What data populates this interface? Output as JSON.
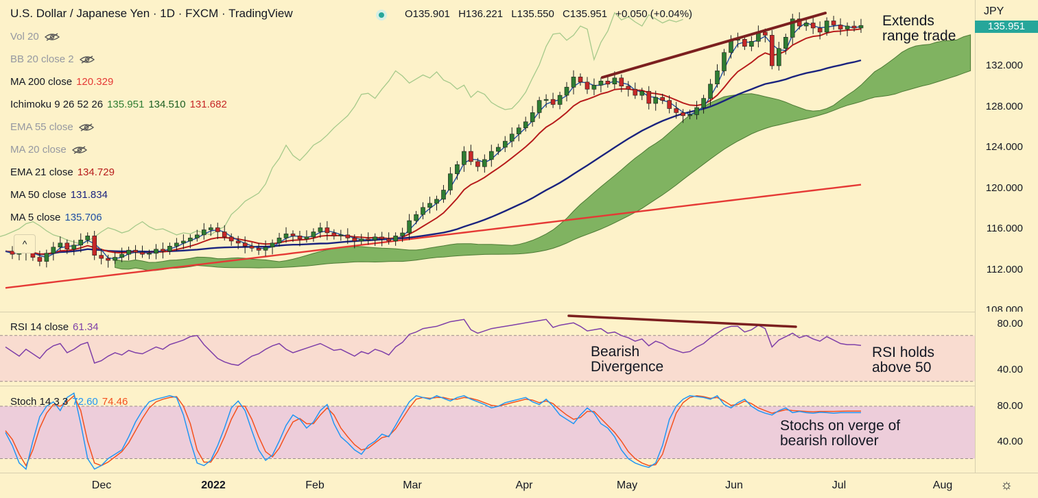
{
  "header": {
    "title": "U.S. Dollar / Japanese Yen · 1D · FXCM · TradingView",
    "open": "O135.901",
    "high": "H136.221",
    "low": "L135.550",
    "close": "C135.951",
    "change": "+0.050 (+0.04%)"
  },
  "legend": {
    "vol": "Vol 20",
    "bb": "BB 20 close 2",
    "ma200": {
      "label": "MA 200 close",
      "value": "120.329"
    },
    "ichimoku": {
      "label": "Ichimoku 9 26 52 26",
      "v1": "135.951",
      "v2": "134.510",
      "v3": "131.682"
    },
    "ema55": "EMA 55 close",
    "ma20": "MA 20 close",
    "ema21": {
      "label": "EMA 21 close",
      "value": "134.729"
    },
    "ma50": {
      "label": "MA 50 close",
      "value": "131.834"
    },
    "ma5": {
      "label": "MA 5 close",
      "value": "135.706"
    },
    "collapse": "^"
  },
  "rsi_legend": {
    "label": "RSI 14 close",
    "value": "61.34"
  },
  "stoch_legend": {
    "label": "Stoch 14 3 3",
    "k": "72.60",
    "d": "74.46"
  },
  "annotations": {
    "range_line1": "Extends",
    "range_line2": "range trade",
    "div_line1": "Bearish",
    "div_line2": "Divergence",
    "rsi_line1": "RSI holds",
    "rsi_line2": "above 50",
    "stoch_line1": "Stochs on verge of",
    "stoch_line2": "bearish rollover"
  },
  "axis": {
    "currency": "JPY",
    "last_price": "135.951",
    "price_ticks": [
      "132.000",
      "128.000",
      "124.000",
      "120.000",
      "116.000",
      "112.000",
      "108.000"
    ],
    "rsi_ticks": [
      "80.00",
      "40.00"
    ],
    "stoch_ticks": [
      "80.00",
      "40.00"
    ],
    "months": [
      "Dec",
      "2022",
      "Feb",
      "Mar",
      "Apr",
      "May",
      "Jun",
      "Jul",
      "Aug"
    ]
  },
  "colors": {
    "background": "#fdf2c9",
    "up": "#2e7d32",
    "down": "#c62828",
    "ma5": "#1e4fa3",
    "ema21": "#b71c1c",
    "ma50": "#1a237e",
    "ma200": "#e53935",
    "cloud": "#6aa84f",
    "lagging": "#a5c98a",
    "rsi": "#7e3fa8",
    "stoch_k": "#2196f3",
    "stoch_d": "#f4511e",
    "trendline": "#7b1f1f",
    "rsi_band": "#f8d9d0",
    "stoch_band": "#ebc9dc"
  },
  "chart_data": [
    {
      "type": "candlestick",
      "title": "U.S. Dollar / Japanese Yen · 1D · FXCM",
      "ylim": [
        108,
        138
      ],
      "x_months": [
        "Dec",
        "2022",
        "Feb",
        "Mar",
        "Apr",
        "May",
        "Jun",
        "Jul",
        "Aug"
      ],
      "close_series": [
        113.8,
        113.5,
        113.6,
        114.1,
        113.2,
        112.8,
        113.6,
        114.2,
        114.6,
        114.0,
        114.4,
        114.9,
        115.3,
        113.4,
        113.1,
        112.9,
        113.2,
        113.5,
        113.9,
        113.7,
        113.5,
        113.6,
        114.0,
        113.8,
        114.3,
        114.6,
        114.8,
        115.1,
        115.4,
        115.9,
        116.1,
        115.7,
        115.2,
        114.8,
        114.6,
        114.3,
        114.1,
        113.9,
        114.2,
        114.6,
        115.1,
        115.5,
        115.3,
        115.0,
        115.2,
        115.7,
        116.1,
        115.6,
        115.3,
        115.4,
        115.1,
        114.8,
        115.0,
        114.9,
        115.2,
        115.0,
        114.8,
        115.3,
        115.6,
        116.8,
        117.4,
        118.1,
        118.5,
        118.9,
        119.8,
        121.4,
        122.3,
        123.6,
        122.6,
        122.1,
        122.8,
        123.6,
        124.0,
        124.6,
        125.3,
        125.9,
        126.5,
        127.4,
        128.6,
        128.7,
        128.2,
        129.1,
        129.9,
        130.9,
        130.4,
        129.7,
        130.1,
        130.5,
        130.2,
        130.8,
        130.0,
        129.7,
        129.1,
        129.5,
        128.3,
        128.9,
        128.6,
        127.8,
        127.4,
        127.1,
        127.2,
        127.9,
        128.8,
        130.2,
        131.5,
        133.3,
        134.5,
        134.6,
        133.9,
        134.4,
        135.3,
        135.0,
        132.0,
        133.7,
        134.8,
        136.6,
        135.9,
        136.2,
        135.7,
        135.3,
        136.4,
        136.0,
        135.6,
        135.9,
        135.7,
        135.95
      ],
      "series": [
        {
          "name": "MA 200 close",
          "value": 120.329
        },
        {
          "name": "EMA 21 close",
          "value": 134.729
        },
        {
          "name": "MA 50 close",
          "value": 131.834
        },
        {
          "name": "MA 5 close",
          "value": 135.706
        },
        {
          "name": "Ichimoku 9 26 52 26",
          "values": [
            135.951,
            134.51,
            131.682
          ]
        }
      ],
      "annotations": [
        "Extends range trade"
      ]
    },
    {
      "type": "line",
      "title": "RSI 14 close",
      "value": 61.34,
      "ylim": [
        30,
        85
      ],
      "bands": [
        30,
        70
      ],
      "values": [
        60,
        56,
        52,
        58,
        54,
        50,
        57,
        61,
        63,
        55,
        58,
        62,
        64,
        46,
        48,
        52,
        55,
        53,
        57,
        55,
        54,
        57,
        60,
        58,
        62,
        64,
        66,
        69,
        70,
        62,
        56,
        50,
        47,
        45,
        44,
        48,
        52,
        54,
        58,
        61,
        63,
        58,
        55,
        57,
        59,
        61,
        63,
        60,
        57,
        58,
        55,
        52,
        56,
        54,
        58,
        56,
        53,
        60,
        64,
        71,
        73,
        76,
        77,
        78,
        80,
        82,
        83,
        84,
        75,
        72,
        74,
        76,
        77,
        78,
        79,
        80,
        81,
        82,
        83,
        84,
        77,
        79,
        80,
        81,
        78,
        74,
        75,
        76,
        72,
        73,
        70,
        68,
        65,
        67,
        61,
        65,
        63,
        59,
        57,
        55,
        56,
        60,
        63,
        68,
        72,
        76,
        78,
        78,
        73,
        75,
        79,
        76,
        60,
        66,
        69,
        72,
        68,
        70,
        67,
        65,
        69,
        66,
        63,
        62,
        62,
        61.34
      ],
      "annotations": [
        "Bearish Divergence",
        "RSI holds above 50"
      ]
    },
    {
      "type": "line",
      "title": "Stoch 14 3 3",
      "ylim": [
        0,
        100
      ],
      "bands": [
        20,
        80
      ],
      "series": [
        {
          "name": "%K",
          "value": 72.6,
          "values": [
            50,
            35,
            15,
            8,
            40,
            68,
            80,
            85,
            75,
            90,
            95,
            60,
            20,
            8,
            12,
            20,
            25,
            30,
            45,
            62,
            75,
            85,
            88,
            90,
            92,
            90,
            70,
            40,
            15,
            12,
            18,
            35,
            55,
            78,
            86,
            75,
            52,
            30,
            18,
            24,
            40,
            58,
            70,
            65,
            55,
            62,
            75,
            82,
            60,
            45,
            38,
            30,
            25,
            35,
            40,
            48,
            45,
            58,
            72,
            85,
            92,
            90,
            88,
            92,
            89,
            86,
            90,
            92,
            88,
            85,
            82,
            78,
            80,
            84,
            86,
            88,
            90,
            85,
            82,
            88,
            80,
            70,
            65,
            60,
            70,
            78,
            72,
            60,
            55,
            45,
            30,
            20,
            15,
            12,
            10,
            15,
            35,
            65,
            80,
            88,
            92,
            91,
            90,
            88,
            92,
            82,
            78,
            84,
            88,
            80,
            75,
            72,
            70,
            75,
            78,
            72.6,
            74,
            72.6,
            72,
            73,
            72.6,
            72,
            72.6,
            72.6,
            72.6,
            72.6
          ]
        },
        {
          "name": "%D",
          "value": 74.46,
          "values": [
            52,
            42,
            25,
            12,
            30,
            55,
            72,
            82,
            80,
            85,
            92,
            75,
            40,
            15,
            12,
            16,
            22,
            28,
            38,
            52,
            66,
            78,
            85,
            88,
            90,
            91,
            80,
            60,
            30,
            16,
            16,
            28,
            45,
            65,
            80,
            80,
            65,
            45,
            28,
            22,
            32,
            48,
            62,
            66,
            60,
            60,
            70,
            78,
            70,
            55,
            45,
            36,
            30,
            32,
            38,
            44,
            46,
            54,
            66,
            78,
            88,
            90,
            89,
            90,
            90,
            88,
            88,
            90,
            89,
            87,
            84,
            81,
            80,
            82,
            84,
            86,
            88,
            87,
            84,
            86,
            83,
            76,
            70,
            65,
            67,
            74,
            74,
            66,
            58,
            50,
            40,
            28,
            20,
            15,
            12,
            13,
            25,
            50,
            72,
            84,
            90,
            92,
            91,
            89,
            90,
            86,
            81,
            82,
            86,
            83,
            78,
            75,
            72,
            74,
            76,
            75,
            74.5,
            74,
            73.5,
            74,
            74,
            74,
            74.2,
            74.4,
            74.46,
            74.46
          ]
        }
      ],
      "annotations": [
        "Stochs on verge of bearish rollover"
      ]
    }
  ]
}
